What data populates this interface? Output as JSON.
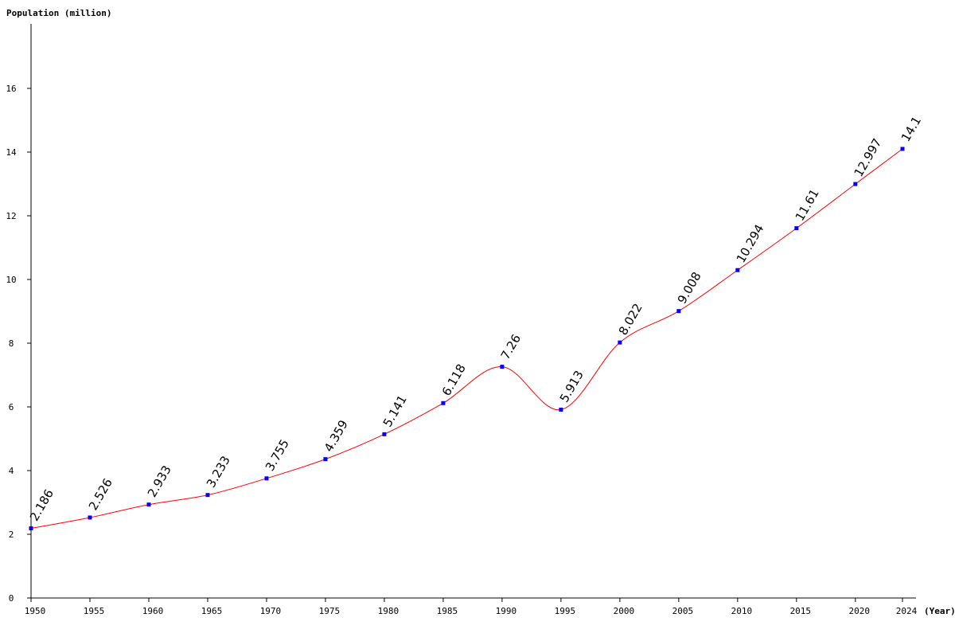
{
  "chart_data": {
    "type": "line",
    "ylabel": "Population (million)",
    "xlabel": "(Year)",
    "x": [
      1950,
      1955,
      1960,
      1965,
      1970,
      1975,
      1980,
      1985,
      1990,
      1995,
      2000,
      2005,
      2010,
      2015,
      2020,
      2024
    ],
    "series": [
      {
        "values": [
          2.186,
          2.526,
          2.933,
          3.233,
          3.755,
          4.359,
          5.141,
          6.118,
          7.26,
          5.913,
          8.022,
          9.008,
          10.294,
          11.61,
          12.997,
          14.1
        ],
        "labels": [
          "2.186",
          "2.526",
          "2.933",
          "3.233",
          "3.755",
          "4.359",
          "5.141",
          "6.118",
          "7.26",
          "5.913",
          "8.022",
          "9.008",
          "10.294",
          "11.61",
          "12.997",
          "14.1"
        ]
      }
    ],
    "yticks": [
      0,
      2,
      4,
      6,
      8,
      10,
      12,
      14,
      16
    ],
    "ylim": [
      0,
      18
    ],
    "grid": false,
    "colors": {
      "line": "#ff0000",
      "marker": "#0000ff",
      "axis": "#000000"
    }
  }
}
